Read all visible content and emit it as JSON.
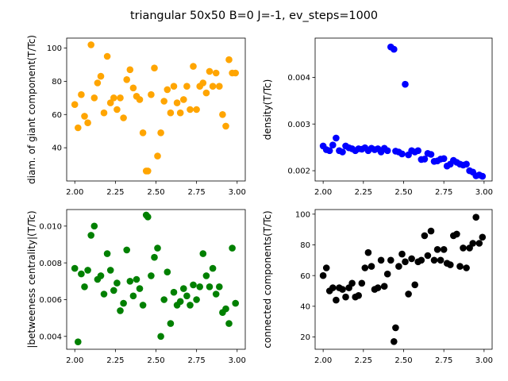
{
  "suptitle": "triangular 50x50  B=0 J=-1, ev_steps=1000",
  "chart_data": [
    {
      "type": "scatter",
      "ylabel": "diam. of giant component(T/Tc)",
      "color": "#ffa500",
      "xlim": [
        1.95,
        3.05
      ],
      "ylim": [
        20,
        106
      ],
      "xticks": [
        2.0,
        2.25,
        2.5,
        2.75,
        3.0
      ],
      "xtick_labels": [
        "2.00",
        "2.25",
        "2.50",
        "2.75",
        "3.00"
      ],
      "yticks": [
        40,
        60,
        80,
        100
      ],
      "ytick_labels": [
        "40",
        "60",
        "80",
        "100"
      ],
      "x": [
        2.0,
        2.02,
        2.04,
        2.06,
        2.08,
        2.1,
        2.12,
        2.14,
        2.16,
        2.18,
        2.2,
        2.22,
        2.24,
        2.26,
        2.28,
        2.3,
        2.32,
        2.34,
        2.36,
        2.38,
        2.4,
        2.42,
        2.44,
        2.45,
        2.47,
        2.49,
        2.51,
        2.53,
        2.55,
        2.57,
        2.59,
        2.61,
        2.63,
        2.65,
        2.67,
        2.69,
        2.71,
        2.73,
        2.75,
        2.77,
        2.79,
        2.81,
        2.83,
        2.85,
        2.87,
        2.89,
        2.91,
        2.93,
        2.95,
        2.97,
        2.99
      ],
      "y": [
        66,
        52,
        72,
        59,
        55,
        102,
        70,
        79,
        83,
        61,
        95,
        67,
        70,
        63,
        70,
        58,
        81,
        87,
        76,
        71,
        69,
        49,
        26,
        26,
        72,
        88,
        35,
        49,
        68,
        75,
        61,
        77,
        67,
        61,
        69,
        77,
        63,
        89,
        63,
        77,
        79,
        73,
        86,
        77,
        85,
        77,
        60,
        53,
        93,
        85,
        85
      ]
    },
    {
      "type": "scatter",
      "ylabel": "density(T/Tc)",
      "color": "#0000ff",
      "xlim": [
        1.95,
        3.05
      ],
      "ylim": [
        0.00178,
        0.00484
      ],
      "xticks": [
        2.0,
        2.25,
        2.5,
        2.75,
        3.0
      ],
      "xtick_labels": [
        "2.00",
        "2.25",
        "2.50",
        "2.75",
        "3.00"
      ],
      "yticks": [
        0.002,
        0.003,
        0.004
      ],
      "ytick_labels": [
        "0.002",
        "0.003",
        "0.004"
      ],
      "x": [
        2.0,
        2.02,
        2.04,
        2.06,
        2.08,
        2.1,
        2.12,
        2.14,
        2.16,
        2.18,
        2.2,
        2.22,
        2.24,
        2.26,
        2.28,
        2.3,
        2.32,
        2.34,
        2.36,
        2.38,
        2.4,
        2.42,
        2.44,
        2.45,
        2.47,
        2.49,
        2.51,
        2.53,
        2.55,
        2.57,
        2.59,
        2.61,
        2.63,
        2.65,
        2.67,
        2.69,
        2.71,
        2.73,
        2.75,
        2.77,
        2.79,
        2.81,
        2.83,
        2.85,
        2.87,
        2.89,
        2.91,
        2.93,
        2.95,
        2.97,
        2.99
      ],
      "y": [
        0.00253,
        0.00245,
        0.00243,
        0.00255,
        0.0027,
        0.00243,
        0.0024,
        0.00253,
        0.00249,
        0.00247,
        0.00243,
        0.00247,
        0.00246,
        0.00249,
        0.00243,
        0.00248,
        0.00245,
        0.00247,
        0.0024,
        0.00248,
        0.00243,
        0.00465,
        0.0046,
        0.00242,
        0.0024,
        0.00236,
        0.00385,
        0.00234,
        0.00243,
        0.0024,
        0.00243,
        0.00224,
        0.00225,
        0.00237,
        0.00235,
        0.0022,
        0.00221,
        0.00225,
        0.00226,
        0.0021,
        0.00214,
        0.00222,
        0.00218,
        0.00214,
        0.00212,
        0.00214,
        0.002,
        0.00197,
        0.00189,
        0.00191,
        0.00188
      ]
    },
    {
      "type": "scatter",
      "ylabel": "|betweeness centrality|(T/Tc)",
      "color": "#008000",
      "xlim": [
        1.95,
        3.05
      ],
      "ylim": [
        0.0033,
        0.0109
      ],
      "xticks": [
        2.0,
        2.25,
        2.5,
        2.75,
        3.0
      ],
      "xtick_labels": [
        "2.00",
        "2.25",
        "2.50",
        "2.75",
        "3.00"
      ],
      "yticks": [
        0.004,
        0.006,
        0.008,
        0.01
      ],
      "ytick_labels": [
        "0.004",
        "0.006",
        "0.008",
        "0.010"
      ],
      "x": [
        2.0,
        2.02,
        2.04,
        2.06,
        2.08,
        2.1,
        2.12,
        2.14,
        2.16,
        2.18,
        2.2,
        2.22,
        2.24,
        2.26,
        2.28,
        2.3,
        2.32,
        2.34,
        2.36,
        2.38,
        2.4,
        2.42,
        2.44,
        2.45,
        2.47,
        2.49,
        2.51,
        2.53,
        2.55,
        2.57,
        2.59,
        2.61,
        2.63,
        2.65,
        2.67,
        2.69,
        2.71,
        2.73,
        2.75,
        2.77,
        2.79,
        2.81,
        2.83,
        2.85,
        2.87,
        2.89,
        2.91,
        2.93,
        2.95,
        2.97,
        2.99
      ],
      "y": [
        0.0077,
        0.0037,
        0.0074,
        0.0067,
        0.0076,
        0.0095,
        0.01,
        0.0071,
        0.0073,
        0.0063,
        0.0085,
        0.0076,
        0.0065,
        0.0069,
        0.0054,
        0.0058,
        0.0087,
        0.007,
        0.0062,
        0.0071,
        0.0066,
        0.0057,
        0.0106,
        0.0105,
        0.0073,
        0.0083,
        0.0088,
        0.004,
        0.006,
        0.0075,
        0.0047,
        0.0064,
        0.0057,
        0.0059,
        0.0066,
        0.0062,
        0.0057,
        0.0068,
        0.006,
        0.0067,
        0.0085,
        0.0073,
        0.0067,
        0.0077,
        0.0063,
        0.0067,
        0.0053,
        0.0055,
        0.0047,
        0.0088,
        0.0058
      ]
    },
    {
      "type": "scatter",
      "ylabel": "connected components(T/Tc)",
      "color": "#000000",
      "xlim": [
        1.95,
        3.05
      ],
      "ylim": [
        12,
        103
      ],
      "xticks": [
        2.0,
        2.25,
        2.5,
        2.75,
        3.0
      ],
      "xtick_labels": [
        "2.00",
        "2.25",
        "2.50",
        "2.75",
        "3.00"
      ],
      "yticks": [
        20,
        40,
        60,
        80,
        100
      ],
      "ytick_labels": [
        "20",
        "40",
        "60",
        "80",
        "100"
      ],
      "x": [
        2.0,
        2.02,
        2.04,
        2.06,
        2.08,
        2.1,
        2.12,
        2.14,
        2.16,
        2.18,
        2.2,
        2.22,
        2.24,
        2.26,
        2.28,
        2.3,
        2.32,
        2.34,
        2.36,
        2.38,
        2.4,
        2.42,
        2.44,
        2.45,
        2.47,
        2.49,
        2.51,
        2.53,
        2.55,
        2.57,
        2.59,
        2.61,
        2.63,
        2.65,
        2.67,
        2.69,
        2.71,
        2.73,
        2.75,
        2.77,
        2.79,
        2.81,
        2.83,
        2.85,
        2.87,
        2.89,
        2.91,
        2.93,
        2.95,
        2.97,
        2.99
      ],
      "y": [
        60,
        65,
        50,
        52,
        44,
        52,
        51,
        46,
        52,
        55,
        46,
        47,
        55,
        65,
        75,
        66,
        51,
        52,
        70,
        53,
        61,
        70,
        17,
        26,
        66,
        74,
        69,
        48,
        71,
        54,
        69,
        70,
        86,
        73,
        89,
        70,
        77,
        70,
        77,
        68,
        67,
        86,
        87,
        66,
        78,
        65,
        78,
        81,
        98,
        81,
        85
      ]
    }
  ]
}
